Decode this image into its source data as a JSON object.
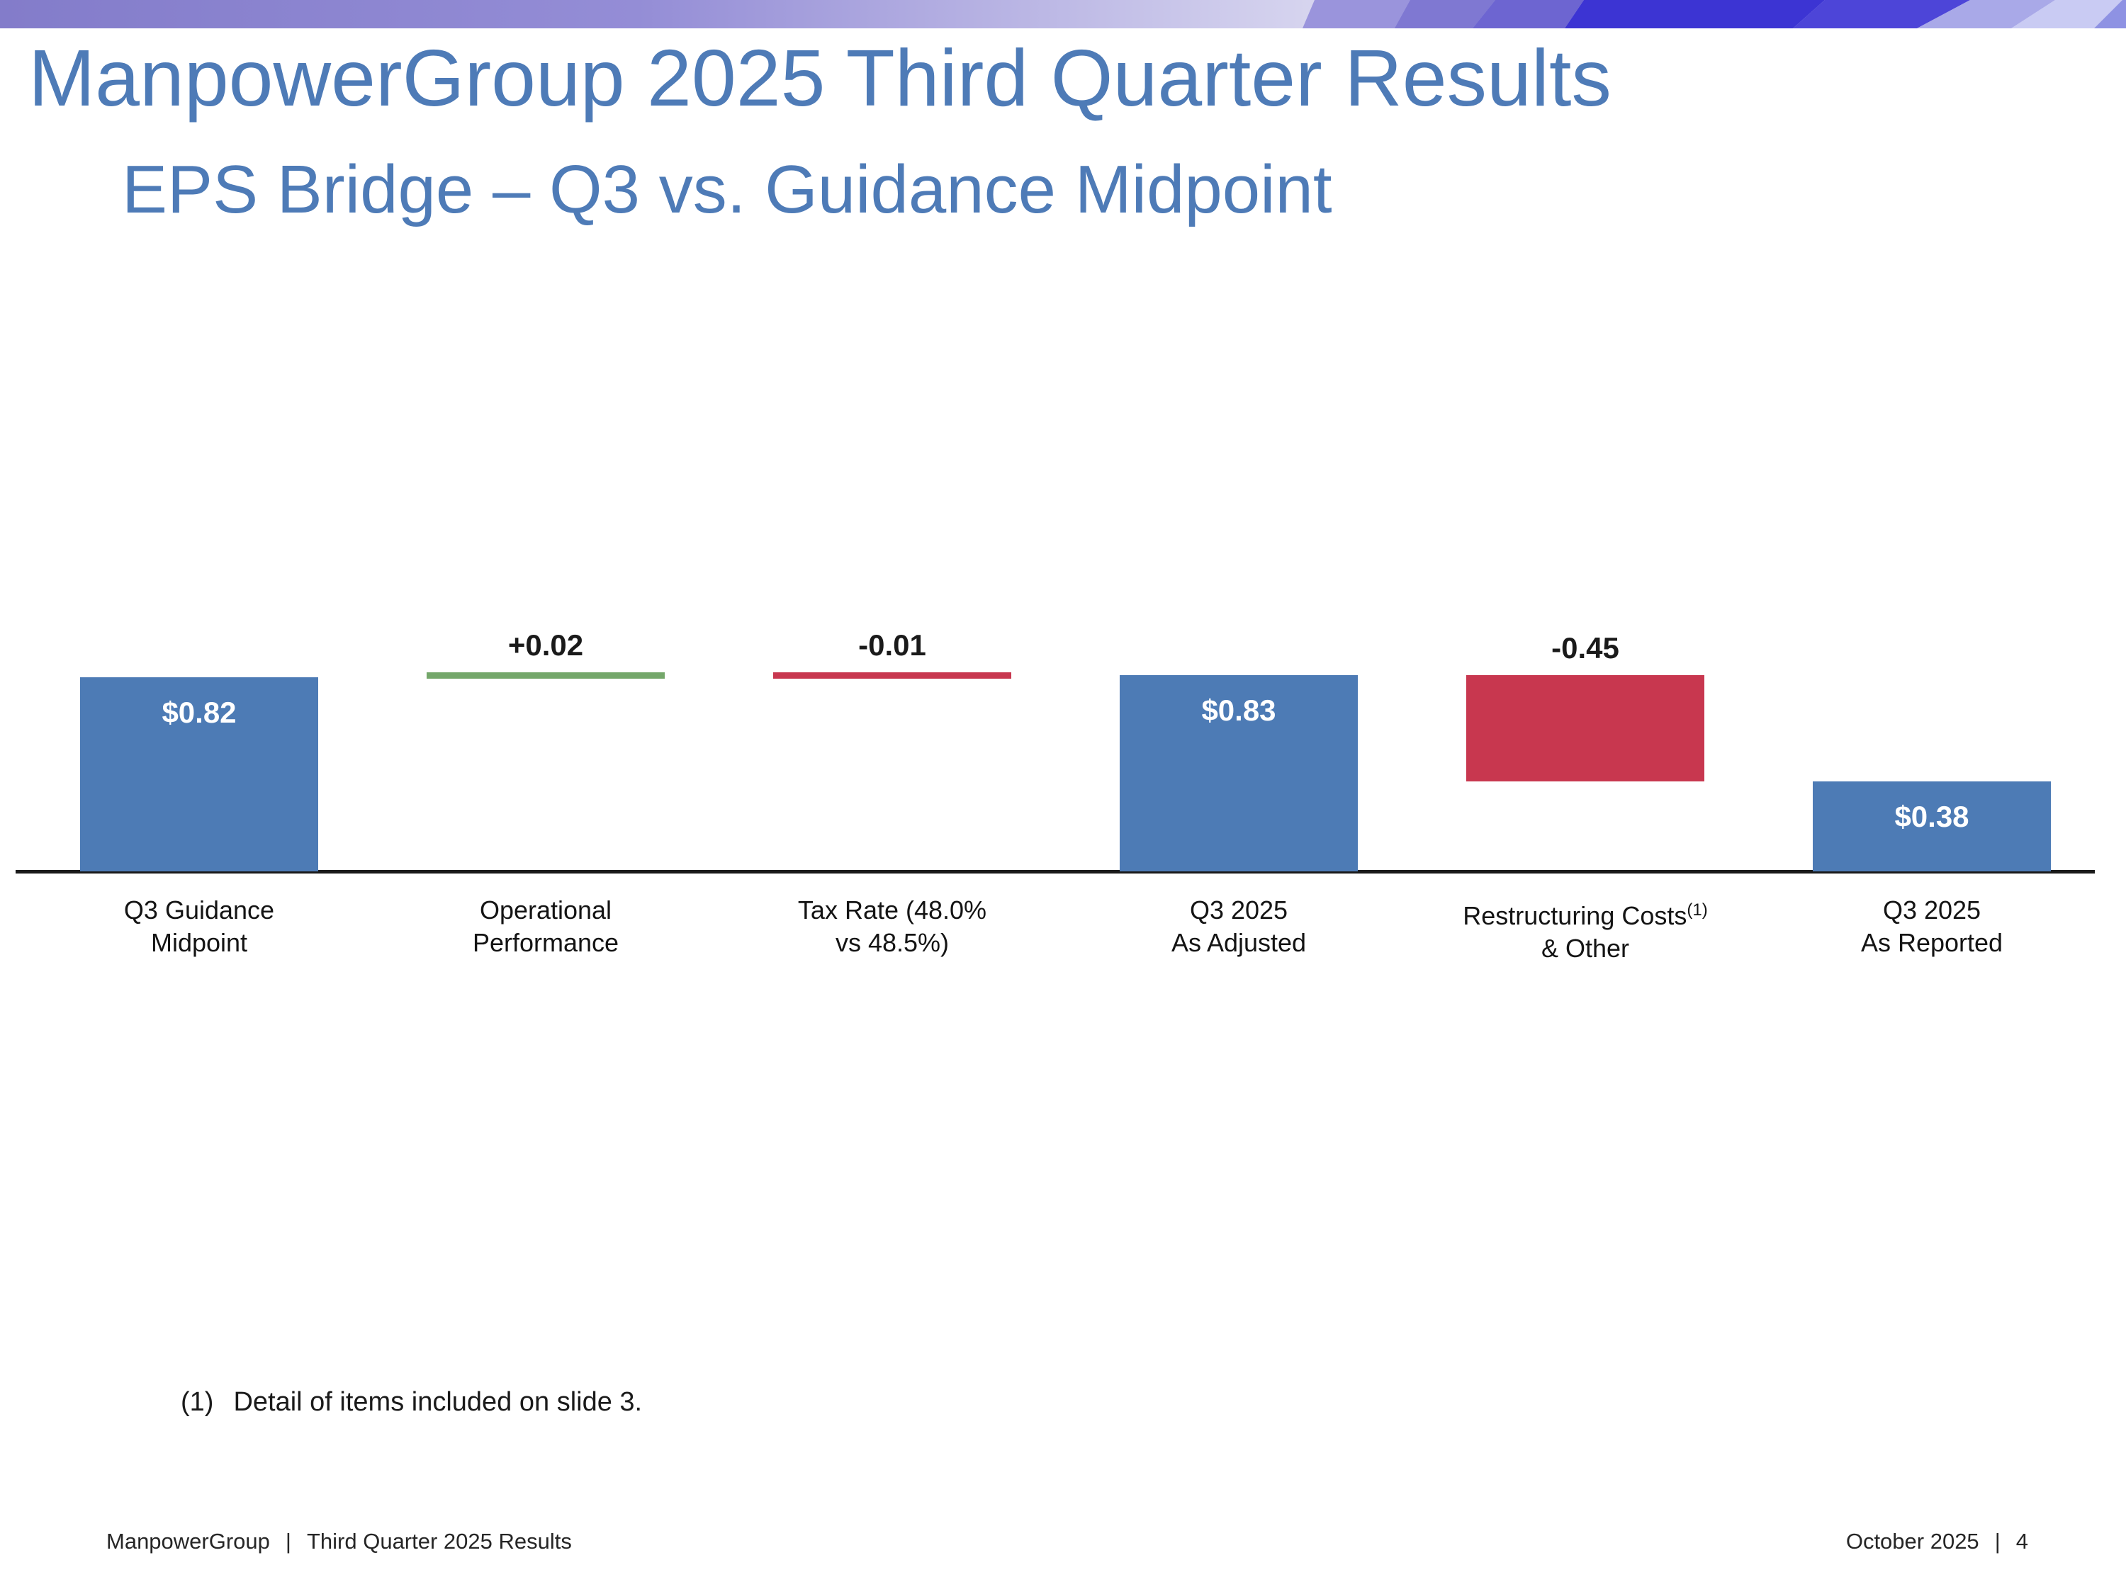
{
  "slide": {
    "title": "ManpowerGroup 2025 Third Quarter Results",
    "subtitle": "EPS Bridge – Q3 vs. Guidance Midpoint",
    "footnote": {
      "marker": "(1)",
      "text": "Detail of items included on slide 3."
    },
    "footer": {
      "left_brand": "ManpowerGroup",
      "left_separator": "|",
      "left_text": "Third Quarter 2025 Results",
      "right_date": "October 2025",
      "right_separator": "|",
      "right_page": "4"
    },
    "colors": {
      "heading_blue": "#4e7bb7",
      "bar_blue": "#4d7bb5",
      "bar_red": "#c8374f",
      "bar_green": "#74a76a",
      "axis": "#1a1a1a",
      "banner_left": "#837cca",
      "banner_light": "#d7d5ef",
      "banner_dark_blue": "#3c34d3"
    }
  },
  "chart_data": {
    "type": "bar",
    "subtype": "waterfall",
    "title": "EPS Bridge – Q3 vs. Guidance Midpoint",
    "xlabel": "",
    "ylabel": "",
    "ylim": [
      0,
      0.9
    ],
    "grid": false,
    "legend": false,
    "categories": [
      "Q3 Guidance Midpoint",
      "Operational Performance",
      "Tax Rate (48.0% vs 48.5%)",
      "Q3 2025 As Adjusted",
      "Restructuring Costs (1) & Other",
      "Q3 2025 As Reported"
    ],
    "values": [
      0.82,
      0.02,
      -0.01,
      0.83,
      -0.45,
      0.38
    ],
    "bars": [
      {
        "slug": "q3-guidance-midpoint",
        "label_lines": [
          "Q3 Guidance",
          "Midpoint"
        ],
        "sup": "",
        "value": 0.82,
        "kind": "total",
        "data_label": "$0.82",
        "color_key": "bar_blue"
      },
      {
        "slug": "operational-performance",
        "label_lines": [
          "Operational",
          "Performance"
        ],
        "sup": "",
        "value": 0.02,
        "kind": "delta",
        "data_label": "+0.02",
        "color_key": "bar_green"
      },
      {
        "slug": "tax-rate",
        "label_lines": [
          "Tax Rate (48.0%",
          "vs 48.5%)"
        ],
        "sup": "",
        "value": -0.01,
        "kind": "delta",
        "data_label": "-0.01",
        "color_key": "bar_red"
      },
      {
        "slug": "q3-2025-as-adjusted",
        "label_lines": [
          "Q3 2025",
          "As Adjusted"
        ],
        "sup": "",
        "value": 0.83,
        "kind": "total",
        "data_label": "$0.83",
        "color_key": "bar_blue"
      },
      {
        "slug": "restructuring-costs",
        "label_lines": [
          "Restructuring Costs",
          "& Other"
        ],
        "sup": "(1)",
        "value": -0.45,
        "kind": "delta",
        "data_label": "-0.45",
        "color_key": "bar_red"
      },
      {
        "slug": "q3-2025-as-reported",
        "label_lines": [
          "Q3 2025",
          "As Reported"
        ],
        "sup": "",
        "value": 0.38,
        "kind": "total",
        "data_label": "$0.38",
        "color_key": "bar_blue"
      }
    ]
  }
}
